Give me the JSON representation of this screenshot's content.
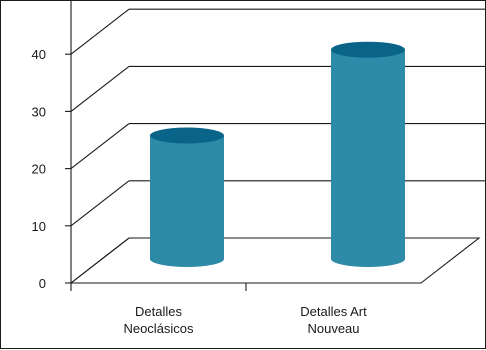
{
  "chart_data": {
    "type": "bar",
    "style": "3d-cylinder",
    "categories": [
      [
        "Detalles",
        "Neoclásicos"
      ],
      [
        "Detalles Art",
        "Nouveau"
      ]
    ],
    "values": [
      25,
      40
    ],
    "ylim": [
      0,
      50
    ],
    "yticks": [
      "0",
      "10",
      "20",
      "30",
      "40"
    ],
    "grid": true,
    "colors": {
      "bar_body": "#2e8ba8",
      "bar_top": "#0a6388",
      "axis": "#1a1a1a",
      "grid": "#1a1a1a"
    }
  }
}
